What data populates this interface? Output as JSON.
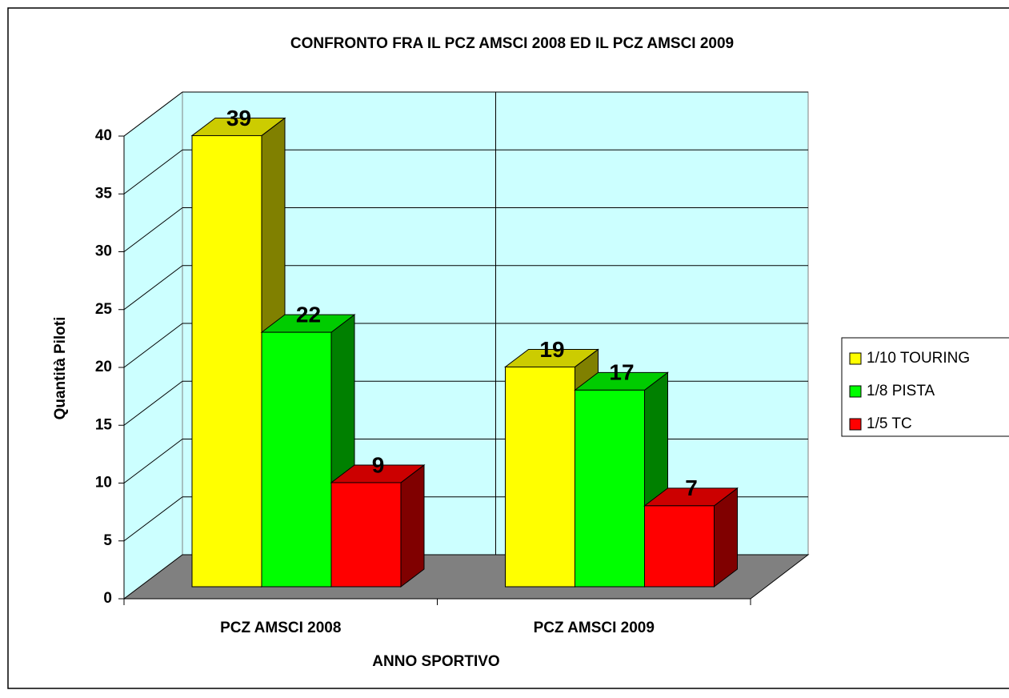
{
  "chart_data": {
    "type": "bar",
    "title": "CONFRONTO FRA IL PCZ AMSCI 2008 ED IL PCZ AMSCI 2009",
    "x_label": "ANNO SPORTIVO",
    "y_label": "Quantità Piloti",
    "categories": [
      "PCZ AMSCI 2008",
      "PCZ AMSCI 2009"
    ],
    "series": [
      {
        "name": "1/10 TOURING",
        "color": "#ffff00",
        "values": [
          39,
          19
        ]
      },
      {
        "name": "1/8 PISTA",
        "color": "#00ff00",
        "values": [
          22,
          17
        ]
      },
      {
        "name": "1/5 TC",
        "color": "#ff0000",
        "values": [
          9,
          7
        ]
      }
    ],
    "ylim": [
      0,
      40
    ],
    "yticks": [
      0,
      5,
      10,
      15,
      20,
      25,
      30,
      35,
      40
    ],
    "grid": true,
    "legend": "right"
  }
}
